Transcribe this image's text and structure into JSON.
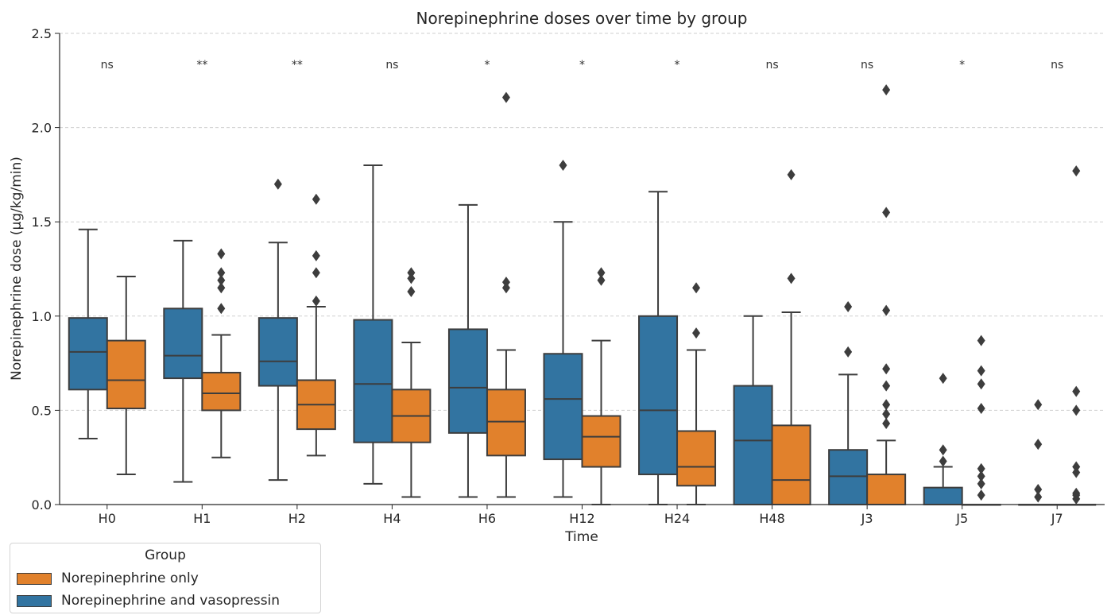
{
  "chart_data": {
    "type": "box",
    "title": "Norepinephrine doses over time by group",
    "xlabel": "Time",
    "ylabel": "Norepinephrine dose (µg/kg/min)",
    "ylim": [
      0,
      2.5
    ],
    "yticks": [
      0.0,
      0.5,
      1.0,
      1.5,
      2.0,
      2.5
    ],
    "ytick_labels": [
      "0.0",
      "0.5",
      "1.0",
      "1.5",
      "2.0",
      "2.5"
    ],
    "grid": "horizontal dashed",
    "categories": [
      "H0",
      "H1",
      "H2",
      "H4",
      "H6",
      "H12",
      "H24",
      "H48",
      "J3",
      "J5",
      "J7"
    ],
    "significance": [
      "ns",
      "**",
      "**",
      "ns",
      "*",
      "*",
      "*",
      "ns",
      "ns",
      "*",
      "ns"
    ],
    "legend": {
      "title": "Group",
      "placement": "bottom-left outside",
      "entries": [
        {
          "label": "Norepinephrine only",
          "color": "#e1812c"
        },
        {
          "label": "Norepinephrine and vasopressin",
          "color": "#3274a1"
        }
      ]
    },
    "series": [
      {
        "name": "Norepinephrine and vasopressin",
        "color": "#3274a1",
        "boxes": [
          {
            "whislo": 0.35,
            "q1": 0.61,
            "med": 0.81,
            "q3": 0.99,
            "whishi": 1.46,
            "fliers": []
          },
          {
            "whislo": 0.12,
            "q1": 0.67,
            "med": 0.79,
            "q3": 1.04,
            "whishi": 1.4,
            "fliers": []
          },
          {
            "whislo": 0.13,
            "q1": 0.63,
            "med": 0.76,
            "q3": 0.99,
            "whishi": 1.39,
            "fliers": [
              1.7
            ]
          },
          {
            "whislo": 0.11,
            "q1": 0.33,
            "med": 0.64,
            "q3": 0.98,
            "whishi": 1.8,
            "fliers": []
          },
          {
            "whislo": 0.04,
            "q1": 0.38,
            "med": 0.62,
            "q3": 0.93,
            "whishi": 1.59,
            "fliers": []
          },
          {
            "whislo": 0.04,
            "q1": 0.24,
            "med": 0.56,
            "q3": 0.8,
            "whishi": 1.5,
            "fliers": [
              1.8
            ]
          },
          {
            "whislo": 0.0,
            "q1": 0.16,
            "med": 0.5,
            "q3": 1.0,
            "whishi": 1.66,
            "fliers": []
          },
          {
            "whislo": 0.0,
            "q1": 0.0,
            "med": 0.34,
            "q3": 0.63,
            "whishi": 1.0,
            "fliers": []
          },
          {
            "whislo": 0.0,
            "q1": 0.0,
            "med": 0.15,
            "q3": 0.29,
            "whishi": 0.69,
            "fliers": [
              0.81,
              1.05
            ]
          },
          {
            "whislo": 0.0,
            "q1": 0.0,
            "med": 0.0,
            "q3": 0.09,
            "whishi": 0.2,
            "fliers": [
              0.23,
              0.29,
              0.67
            ]
          },
          {
            "whislo": 0.0,
            "q1": 0.0,
            "med": 0.0,
            "q3": 0.0,
            "whishi": 0.0,
            "fliers": [
              0.04,
              0.08,
              0.32,
              0.53
            ]
          }
        ]
      },
      {
        "name": "Norepinephrine only",
        "color": "#e1812c",
        "boxes": [
          {
            "whislo": 0.16,
            "q1": 0.51,
            "med": 0.66,
            "q3": 0.87,
            "whishi": 1.21,
            "fliers": []
          },
          {
            "whislo": 0.25,
            "q1": 0.5,
            "med": 0.59,
            "q3": 0.7,
            "whishi": 0.9,
            "fliers": [
              1.04,
              1.15,
              1.19,
              1.23,
              1.33
            ]
          },
          {
            "whislo": 0.26,
            "q1": 0.4,
            "med": 0.53,
            "q3": 0.66,
            "whishi": 1.05,
            "fliers": [
              1.08,
              1.23,
              1.32,
              1.62
            ]
          },
          {
            "whislo": 0.04,
            "q1": 0.33,
            "med": 0.47,
            "q3": 0.61,
            "whishi": 0.86,
            "fliers": [
              1.13,
              1.2,
              1.23
            ]
          },
          {
            "whislo": 0.04,
            "q1": 0.26,
            "med": 0.44,
            "q3": 0.61,
            "whishi": 0.82,
            "fliers": [
              1.15,
              1.18,
              2.16
            ]
          },
          {
            "whislo": 0.0,
            "q1": 0.2,
            "med": 0.36,
            "q3": 0.47,
            "whishi": 0.87,
            "fliers": [
              1.19,
              1.23
            ]
          },
          {
            "whislo": 0.0,
            "q1": 0.1,
            "med": 0.2,
            "q3": 0.39,
            "whishi": 0.82,
            "fliers": [
              0.91,
              1.15
            ]
          },
          {
            "whislo": 0.0,
            "q1": 0.0,
            "med": 0.13,
            "q3": 0.42,
            "whishi": 1.02,
            "fliers": [
              1.2,
              1.75
            ]
          },
          {
            "whislo": 0.0,
            "q1": 0.0,
            "med": 0.0,
            "q3": 0.16,
            "whishi": 0.34,
            "fliers": [
              0.43,
              0.48,
              0.53,
              0.63,
              0.72,
              1.03,
              1.55,
              2.2
            ]
          },
          {
            "whislo": 0.0,
            "q1": 0.0,
            "med": 0.0,
            "q3": 0.0,
            "whishi": 0.0,
            "fliers": [
              0.05,
              0.11,
              0.15,
              0.19,
              0.51,
              0.64,
              0.71,
              0.87
            ]
          },
          {
            "whislo": 0.0,
            "q1": 0.0,
            "med": 0.0,
            "q3": 0.0,
            "whishi": 0.0,
            "fliers": [
              0.03,
              0.05,
              0.06,
              0.17,
              0.2,
              0.5,
              0.6,
              1.77
            ]
          }
        ]
      }
    ]
  }
}
